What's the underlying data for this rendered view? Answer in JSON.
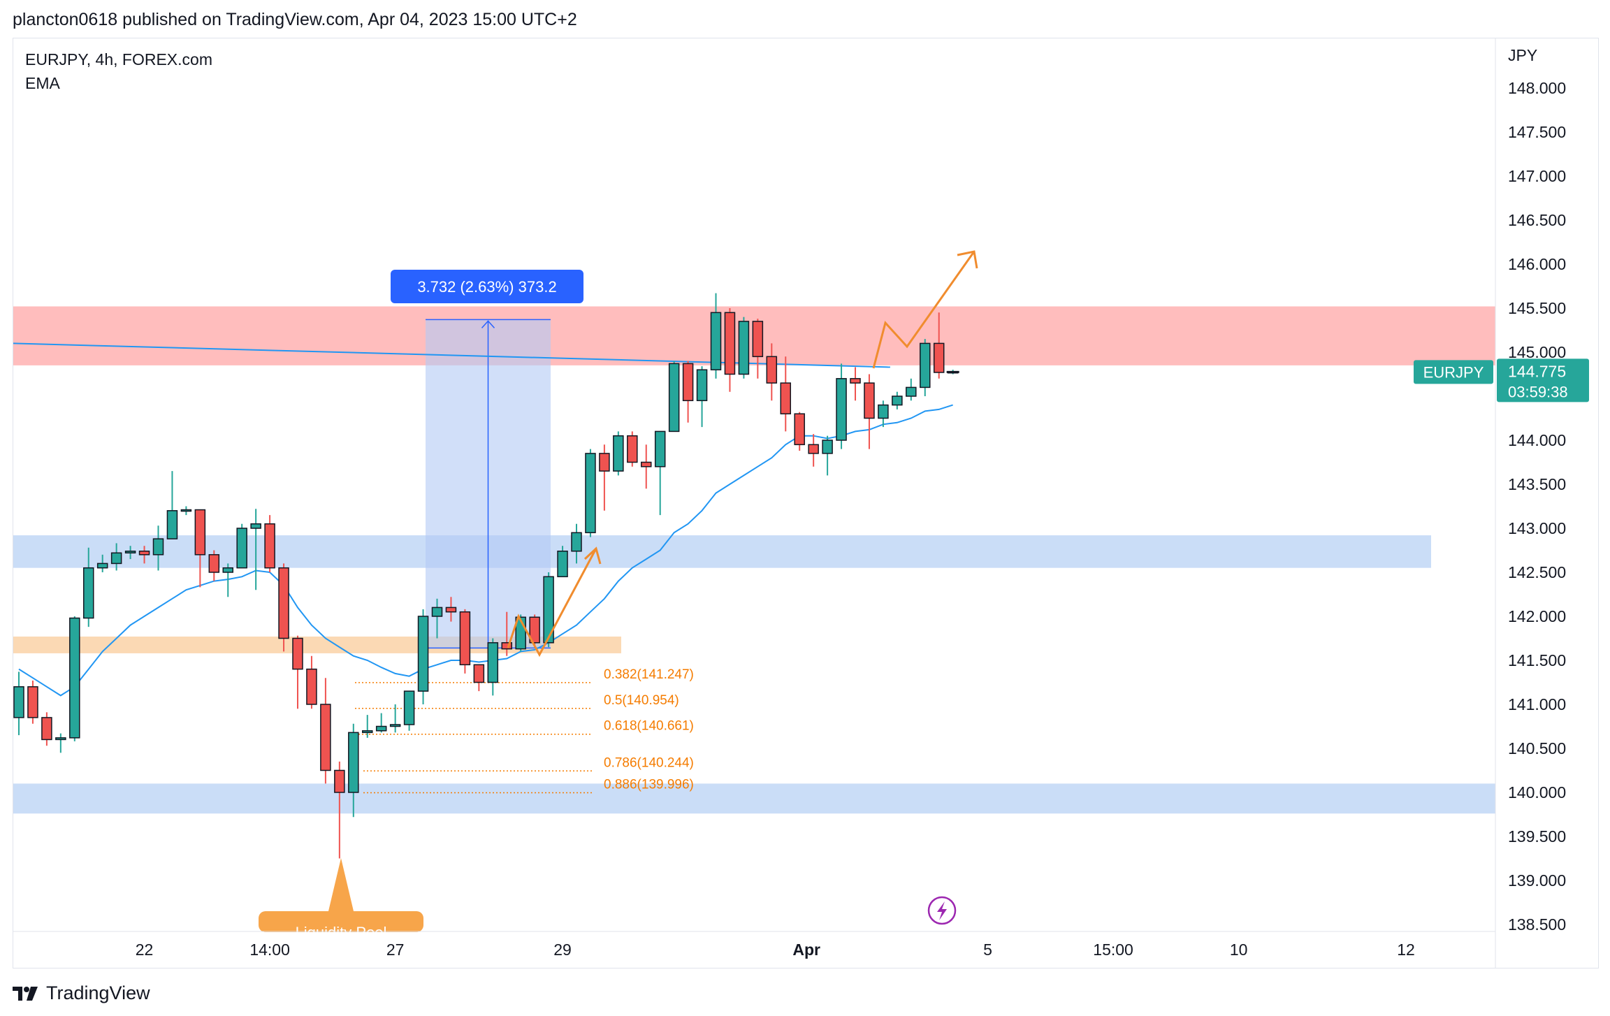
{
  "header": {
    "publisher": "plancton0618 published on TradingView.com, Apr 04, 2023 15:00 UTC+2"
  },
  "legend": {
    "symbol": "EURJPY, 4h, FOREX.com",
    "indicator": "EMA"
  },
  "axis": {
    "currency": "JPY"
  },
  "measure": {
    "label": "3.732 (2.63%) 373.2"
  },
  "price_tag": {
    "symbol": "EURJPY",
    "price": "144.775",
    "countdown": "03:59:38"
  },
  "footer": {
    "brand": "TradingView"
  },
  "bottom_label": {
    "text": "Liquidity Pool"
  },
  "colors": {
    "up": "#26a69a",
    "down": "#ef5350",
    "ema": "#2196f3",
    "resistance": "#ffbdbd",
    "support": "#c7dbf7",
    "orange": "#f7a54a"
  },
  "chart_data": {
    "type": "candlestick",
    "symbol": "EURJPY",
    "timeframe": "4h",
    "ylim": [
      138.4,
      148.5
    ],
    "yticks": [
      148.0,
      147.5,
      147.0,
      146.5,
      146.0,
      145.5,
      145.0,
      144.0,
      143.5,
      143.0,
      142.5,
      142.0,
      141.5,
      141.0,
      140.5,
      140.0,
      139.5,
      139.0,
      138.5
    ],
    "ytick_labels": [
      "148.000",
      "147.500",
      "147.000",
      "146.500",
      "146.000",
      "145.500",
      "145.000",
      "144.000",
      "143.500",
      "143.000",
      "142.500",
      "142.000",
      "141.500",
      "141.000",
      "140.500",
      "140.000",
      "139.500",
      "139.000",
      "138.500"
    ],
    "xticks": [
      {
        "label": "22",
        "bar": 9
      },
      {
        "label": "14:00",
        "bar": 18
      },
      {
        "label": "27",
        "bar": 27
      },
      {
        "label": "29",
        "bar": 39
      },
      {
        "label": "Apr",
        "bar": 56.5
      },
      {
        "label": "5",
        "bar": 69.5
      },
      {
        "label": "15:00",
        "bar": 78.5
      },
      {
        "label": "10",
        "bar": 87.5
      },
      {
        "label": "12",
        "bar": 99.5
      }
    ],
    "candles": [
      [
        140.85,
        141.2,
        141.37,
        140.65
      ],
      [
        141.2,
        140.85,
        141.27,
        140.78
      ],
      [
        140.85,
        140.6,
        140.91,
        140.53
      ],
      [
        140.6,
        140.62,
        140.67,
        140.45
      ],
      [
        140.62,
        141.98,
        142.0,
        140.58
      ],
      [
        141.98,
        142.55,
        142.78,
        141.88
      ],
      [
        142.55,
        142.6,
        142.7,
        142.5
      ],
      [
        142.6,
        142.72,
        142.83,
        142.52
      ],
      [
        142.72,
        142.74,
        142.8,
        142.65
      ],
      [
        142.74,
        142.7,
        142.8,
        142.6
      ],
      [
        142.7,
        142.88,
        143.03,
        142.52
      ],
      [
        142.88,
        143.2,
        143.65,
        142.88
      ],
      [
        143.2,
        143.21,
        143.25,
        143.15
      ],
      [
        143.21,
        142.7,
        143.21,
        142.33
      ],
      [
        142.7,
        142.5,
        142.75,
        142.4
      ],
      [
        142.5,
        142.55,
        142.6,
        142.22
      ],
      [
        142.55,
        143.0,
        143.05,
        142.55
      ],
      [
        143.0,
        143.05,
        143.22,
        142.3
      ],
      [
        143.05,
        142.55,
        143.15,
        142.5
      ],
      [
        142.55,
        141.75,
        142.6,
        141.6
      ],
      [
        141.75,
        141.4,
        141.78,
        140.95
      ],
      [
        141.4,
        141.0,
        141.55,
        140.95
      ],
      [
        141.0,
        140.25,
        141.3,
        140.1
      ],
      [
        140.25,
        140.0,
        140.35,
        139.25
      ],
      [
        140.0,
        140.68,
        140.78,
        139.72
      ],
      [
        140.68,
        140.7,
        140.88,
        140.62
      ],
      [
        140.7,
        140.75,
        140.9,
        140.68
      ],
      [
        140.75,
        140.77,
        141.0,
        140.68
      ],
      [
        140.77,
        141.15,
        141.15,
        140.7
      ],
      [
        141.15,
        142.0,
        142.08,
        141.0
      ],
      [
        142.0,
        142.1,
        142.2,
        141.75
      ],
      [
        142.1,
        142.05,
        142.22,
        141.94
      ],
      [
        142.05,
        141.45,
        142.08,
        141.35
      ],
      [
        141.45,
        141.25,
        141.45,
        141.15
      ],
      [
        141.25,
        141.7,
        141.75,
        141.1
      ],
      [
        141.7,
        141.63,
        142.05,
        141.55
      ],
      [
        141.63,
        141.99,
        142.02,
        141.6
      ],
      [
        141.99,
        141.7,
        142.02,
        141.65
      ],
      [
        141.7,
        142.45,
        142.5,
        141.65
      ],
      [
        142.45,
        142.74,
        142.8,
        142.45
      ],
      [
        142.74,
        142.95,
        143.05,
        142.6
      ],
      [
        142.95,
        143.85,
        143.9,
        142.9
      ],
      [
        143.85,
        143.65,
        143.95,
        143.2
      ],
      [
        143.65,
        144.05,
        144.1,
        143.6
      ],
      [
        144.05,
        143.75,
        144.1,
        143.7
      ],
      [
        143.75,
        143.7,
        143.95,
        143.45
      ],
      [
        143.7,
        144.1,
        144.1,
        143.15
      ],
      [
        144.1,
        144.87,
        144.9,
        144.1
      ],
      [
        144.87,
        144.45,
        144.9,
        144.2
      ],
      [
        144.45,
        144.8,
        144.84,
        144.15
      ],
      [
        144.8,
        145.45,
        145.67,
        144.7
      ],
      [
        145.45,
        144.75,
        145.5,
        144.55
      ],
      [
        144.75,
        145.35,
        145.4,
        144.7
      ],
      [
        145.35,
        144.95,
        145.38,
        144.7
      ],
      [
        144.95,
        144.65,
        145.1,
        144.45
      ],
      [
        144.65,
        144.3,
        144.95,
        144.1
      ],
      [
        144.3,
        143.95,
        144.32,
        143.88
      ],
      [
        143.95,
        143.85,
        144.07,
        143.7
      ],
      [
        143.85,
        144.0,
        144.05,
        143.6
      ],
      [
        144.0,
        144.7,
        144.87,
        143.9
      ],
      [
        144.7,
        144.65,
        144.83,
        144.45
      ],
      [
        144.65,
        144.25,
        144.75,
        143.9
      ],
      [
        144.25,
        144.4,
        144.45,
        144.15
      ],
      [
        144.4,
        144.5,
        144.55,
        144.35
      ],
      [
        144.5,
        144.6,
        144.7,
        144.45
      ],
      [
        144.6,
        145.1,
        145.15,
        144.5
      ],
      [
        145.1,
        144.77,
        145.45,
        144.7
      ],
      [
        144.77,
        144.78,
        144.8,
        144.75
      ]
    ],
    "ema": [
      141.4,
      141.3,
      141.2,
      141.1,
      141.2,
      141.4,
      141.6,
      141.75,
      141.9,
      142.0,
      142.1,
      142.2,
      142.3,
      142.35,
      142.4,
      142.42,
      142.45,
      142.52,
      142.5,
      142.35,
      142.1,
      141.9,
      141.75,
      141.65,
      141.55,
      141.5,
      141.42,
      141.35,
      141.32,
      141.4,
      141.45,
      141.5,
      141.5,
      141.48,
      141.5,
      141.52,
      141.6,
      141.62,
      141.7,
      141.8,
      141.9,
      142.05,
      142.2,
      142.4,
      142.55,
      142.65,
      142.75,
      142.95,
      143.05,
      143.2,
      143.4,
      143.5,
      143.6,
      143.7,
      143.8,
      143.95,
      144.05,
      144.05,
      144.02,
      144.05,
      144.1,
      144.12,
      144.18,
      144.2,
      144.25,
      144.33,
      144.35,
      144.4
    ],
    "zones": [
      {
        "name": "resistance",
        "from": 144.85,
        "to": 145.52
      },
      {
        "name": "support-high",
        "from": 142.55,
        "to": 142.92
      },
      {
        "name": "support-low",
        "from": 139.76,
        "to": 140.1
      },
      {
        "name": "liquidity",
        "from": 141.58,
        "to": 141.77
      }
    ],
    "fibonacci": [
      {
        "label": "0.382(141.247)",
        "price": 141.247
      },
      {
        "label": "0.5(140.954)",
        "price": 140.954
      },
      {
        "label": "0.618(140.661)",
        "price": 140.661
      },
      {
        "label": "0.786(140.244)",
        "price": 140.244
      },
      {
        "label": "0.886(139.996)",
        "price": 139.996
      }
    ],
    "trendline": [
      [
        0,
        145.1
      ],
      [
        62.5,
        144.83
      ]
    ],
    "measurement": {
      "from_price": 141.64,
      "to_price": 145.37,
      "label": "3.732 (2.63%) 373.2"
    },
    "last_price": 144.775
  }
}
